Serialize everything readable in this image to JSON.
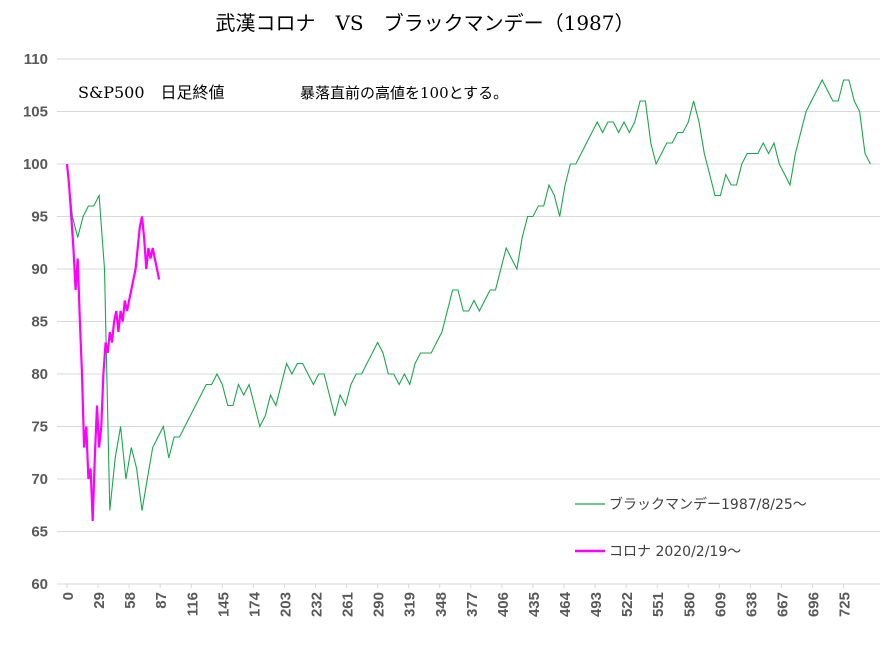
{
  "chart_data": {
    "type": "line",
    "title": "武漢コロナ　VS　ブラックマンデー（1987）",
    "annotations": [
      "S&P500　日足終値",
      "暴落直前の高値を100とする。"
    ],
    "xlim": [
      0,
      759
    ],
    "xticks": [
      0,
      29,
      58,
      87,
      116,
      145,
      174,
      203,
      232,
      261,
      290,
      319,
      348,
      377,
      406,
      435,
      464,
      493,
      522,
      551,
      580,
      609,
      638,
      667,
      696,
      725
    ],
    "ylim": [
      60,
      110
    ],
    "yticks": [
      60,
      65,
      70,
      75,
      80,
      85,
      90,
      95,
      100,
      105,
      110
    ],
    "grid": true,
    "series": [
      {
        "name": "ブラックマンデー1987/8/25〜",
        "color": "#1aa84e",
        "x": [
          0,
          5,
          10,
          15,
          20,
          25,
          30,
          35,
          40,
          45,
          50,
          55,
          60,
          65,
          70,
          75,
          80,
          85,
          90,
          95,
          100,
          105,
          110,
          115,
          120,
          125,
          130,
          135,
          140,
          145,
          150,
          155,
          160,
          165,
          170,
          175,
          180,
          185,
          190,
          195,
          200,
          205,
          210,
          215,
          220,
          225,
          230,
          235,
          240,
          245,
          250,
          255,
          260,
          265,
          270,
          275,
          280,
          285,
          290,
          295,
          300,
          305,
          310,
          315,
          320,
          325,
          330,
          335,
          340,
          345,
          350,
          355,
          360,
          365,
          370,
          375,
          380,
          385,
          390,
          395,
          400,
          405,
          410,
          415,
          420,
          425,
          430,
          435,
          440,
          445,
          450,
          455,
          460,
          465,
          470,
          475,
          480,
          485,
          490,
          495,
          500,
          505,
          510,
          515,
          520,
          525,
          530,
          535,
          540,
          545,
          550,
          555,
          560,
          565,
          570,
          575,
          580,
          585,
          590,
          595,
          600,
          605,
          610,
          615,
          620,
          625,
          630,
          635,
          640,
          645,
          650,
          655,
          660,
          665,
          670,
          675,
          680,
          685,
          690,
          695,
          700,
          705,
          710,
          715,
          720,
          725,
          730,
          735,
          740,
          745,
          750
        ],
        "values": [
          100,
          95,
          93,
          95,
          96,
          96,
          97,
          90,
          67,
          72,
          75,
          70,
          73,
          71,
          67,
          70,
          73,
          74,
          75,
          72,
          74,
          74,
          75,
          76,
          77,
          78,
          79,
          79,
          80,
          79,
          77,
          77,
          79,
          78,
          79,
          77,
          75,
          76,
          78,
          77,
          79,
          81,
          80,
          81,
          81,
          80,
          79,
          80,
          80,
          78,
          76,
          78,
          77,
          79,
          80,
          80,
          81,
          82,
          83,
          82,
          80,
          80,
          79,
          80,
          79,
          81,
          82,
          82,
          82,
          83,
          84,
          86,
          88,
          88,
          86,
          86,
          87,
          86,
          87,
          88,
          88,
          90,
          92,
          91,
          90,
          93,
          95,
          95,
          96,
          96,
          98,
          97,
          95,
          98,
          100,
          100,
          101,
          102,
          103,
          104,
          103,
          104,
          104,
          103,
          104,
          103,
          104,
          106,
          106,
          102,
          100,
          101,
          102,
          102,
          103,
          103,
          104,
          106,
          104,
          101,
          99,
          97,
          97,
          99,
          98,
          98,
          100,
          101,
          101,
          101,
          102,
          101,
          102,
          100,
          99,
          98,
          101,
          103,
          105,
          106,
          107,
          108,
          107,
          106,
          106,
          108,
          108,
          106,
          105,
          101,
          100
        ]
      },
      {
        "name": "コロナ 2020/2/19〜",
        "color": "#ff00ff",
        "x": [
          0,
          2,
          4,
          6,
          8,
          10,
          12,
          14,
          16,
          18,
          20,
          22,
          24,
          26,
          28,
          30,
          32,
          34,
          36,
          38,
          40,
          42,
          44,
          46,
          48,
          50,
          52,
          54,
          56,
          58,
          60,
          62,
          64,
          66,
          68,
          70,
          72,
          74,
          76,
          78,
          80,
          82,
          84,
          86
        ],
        "values": [
          100,
          98,
          95,
          92,
          88,
          91,
          85,
          80,
          73,
          75,
          70,
          71,
          66,
          72,
          77,
          73,
          75,
          80,
          83,
          82,
          84,
          83,
          85,
          86,
          84,
          86,
          85,
          87,
          86,
          87,
          88,
          89,
          90,
          92,
          94,
          95,
          93,
          90,
          92,
          91,
          92,
          91,
          90,
          89
        ]
      }
    ]
  }
}
